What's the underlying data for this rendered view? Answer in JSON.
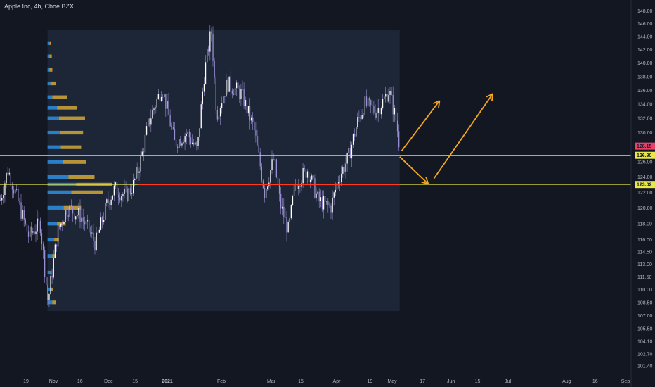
{
  "header": {
    "symbol_title": "Apple Inc, 4h, Cboe BZX"
  },
  "colors": {
    "background": "#131722",
    "profile_box": "#1c2636",
    "candle": "#9a8fd4",
    "volume_up": "#2e8fe0",
    "volume_down": "#d4a83a",
    "poc_line": "#ff3b1f",
    "level_line": "#e8e84a",
    "current_price_line": "#ef5350",
    "arrow": "#f5a623",
    "axis_text": "#b2b5be"
  },
  "chart_data": {
    "type": "candlestick",
    "title": "Apple Inc, 4h, Cboe BZX",
    "interval": "4h",
    "y_axis": {
      "scale": "log",
      "ylim": [
        100.5,
        149.5
      ],
      "tick_labels": [
        "148.00",
        "146.00",
        "144.00",
        "142.00",
        "140.00",
        "138.00",
        "136.00",
        "134.00",
        "132.00",
        "130.00",
        "128.00",
        "126.00",
        "124.00",
        "122.00",
        "120.00",
        "118.00",
        "116.00",
        "114.50",
        "113.00",
        "111.50",
        "110.00",
        "108.50",
        "107.00",
        "105.50",
        "104.10",
        "102.70",
        "101.40"
      ]
    },
    "x_axis": {
      "tick_labels": [
        "19",
        "Nov",
        "16",
        "Dec",
        "15",
        "2021",
        "Feb",
        "Mar",
        "15",
        "Apr",
        "19",
        "May",
        "17",
        "Jun",
        "15",
        "Jul",
        "Aug",
        "16",
        "Sep"
      ],
      "range": [
        "2020-10-12",
        "2021-09-01"
      ]
    },
    "price_path": [
      {
        "date": "2020-10-12",
        "price": 121.0
      },
      {
        "date": "2020-10-14",
        "price": 125.0
      },
      {
        "date": "2020-10-20",
        "price": 116.5
      },
      {
        "date": "2020-10-26",
        "price": 118.0
      },
      {
        "date": "2020-10-30",
        "price": 108.5
      },
      {
        "date": "2020-11-04",
        "price": 117.0
      },
      {
        "date": "2020-11-09",
        "price": 120.0
      },
      {
        "date": "2020-11-16",
        "price": 119.0
      },
      {
        "date": "2020-11-24",
        "price": 115.5
      },
      {
        "date": "2020-11-30",
        "price": 120.5
      },
      {
        "date": "2020-12-04",
        "price": 122.5
      },
      {
        "date": "2020-12-10",
        "price": 121.5
      },
      {
        "date": "2020-12-14",
        "price": 123.0
      },
      {
        "date": "2020-12-18",
        "price": 126.5
      },
      {
        "date": "2020-12-22",
        "price": 131.5
      },
      {
        "date": "2020-12-29",
        "price": 136.5
      },
      {
        "date": "2021-01-05",
        "price": 128.5
      },
      {
        "date": "2021-01-12",
        "price": 130.0
      },
      {
        "date": "2021-01-18",
        "price": 127.5
      },
      {
        "date": "2021-01-22",
        "price": 138.5
      },
      {
        "date": "2021-01-26",
        "price": 145.0
      },
      {
        "date": "2021-01-29",
        "price": 132.5
      },
      {
        "date": "2021-02-04",
        "price": 137.0
      },
      {
        "date": "2021-02-12",
        "price": 135.5
      },
      {
        "date": "2021-02-19",
        "price": 130.5
      },
      {
        "date": "2021-02-25",
        "price": 122.0
      },
      {
        "date": "2021-03-02",
        "price": 126.5
      },
      {
        "date": "2021-03-05",
        "price": 120.5
      },
      {
        "date": "2021-03-09",
        "price": 117.0
      },
      {
        "date": "2021-03-12",
        "price": 123.0
      },
      {
        "date": "2021-03-18",
        "price": 125.0
      },
      {
        "date": "2021-03-23",
        "price": 121.0
      },
      {
        "date": "2021-03-29",
        "price": 120.0
      },
      {
        "date": "2021-04-02",
        "price": 124.0
      },
      {
        "date": "2021-04-07",
        "price": 126.5
      },
      {
        "date": "2021-04-12",
        "price": 131.5
      },
      {
        "date": "2021-04-16",
        "price": 134.0
      },
      {
        "date": "2021-04-22",
        "price": 133.0
      },
      {
        "date": "2021-04-26",
        "price": 134.5
      },
      {
        "date": "2021-04-29",
        "price": 136.0
      },
      {
        "date": "2021-05-03",
        "price": 131.5
      },
      {
        "date": "2021-05-05",
        "price": 127.5
      }
    ],
    "volume_profile": {
      "date_range": [
        "2020-10-30",
        "2021-05-05"
      ],
      "price_range": [
        107.5,
        145.0
      ],
      "point_of_control": 123.0,
      "up_volume_relative": [
        {
          "price": 108.5,
          "value": 0.05
        },
        {
          "price": 110.0,
          "value": 0.04
        },
        {
          "price": 112.0,
          "value": 0.03
        },
        {
          "price": 114.0,
          "value": 0.05
        },
        {
          "price": 116.0,
          "value": 0.07
        },
        {
          "price": 118.0,
          "value": 0.1
        },
        {
          "price": 120.0,
          "value": 0.17
        },
        {
          "price": 122.0,
          "value": 0.25
        },
        {
          "price": 123.0,
          "value": 0.3
        },
        {
          "price": 124.0,
          "value": 0.22
        },
        {
          "price": 126.0,
          "value": 0.16
        },
        {
          "price": 128.0,
          "value": 0.14
        },
        {
          "price": 130.0,
          "value": 0.13
        },
        {
          "price": 132.0,
          "value": 0.12
        },
        {
          "price": 133.5,
          "value": 0.1
        },
        {
          "price": 135.0,
          "value": 0.05
        },
        {
          "price": 137.0,
          "value": 0.03
        },
        {
          "price": 139.0,
          "value": 0.02
        },
        {
          "price": 141.0,
          "value": 0.02
        },
        {
          "price": 143.0,
          "value": 0.02
        }
      ],
      "down_volume_relative": [
        {
          "price": 108.5,
          "value": 0.06
        },
        {
          "price": 110.0,
          "value": 0.03
        },
        {
          "price": 112.0,
          "value": 0.02
        },
        {
          "price": 114.0,
          "value": 0.04
        },
        {
          "price": 116.0,
          "value": 0.08
        },
        {
          "price": 118.0,
          "value": 0.14
        },
        {
          "price": 120.0,
          "value": 0.3
        },
        {
          "price": 122.0,
          "value": 0.55
        },
        {
          "price": 123.0,
          "value": 0.62
        },
        {
          "price": 124.0,
          "value": 0.45
        },
        {
          "price": 126.0,
          "value": 0.4
        },
        {
          "price": 128.0,
          "value": 0.35
        },
        {
          "price": 130.0,
          "value": 0.4
        },
        {
          "price": 132.0,
          "value": 0.45
        },
        {
          "price": 133.5,
          "value": 0.35
        },
        {
          "price": 135.0,
          "value": 0.25
        },
        {
          "price": 137.0,
          "value": 0.1
        },
        {
          "price": 139.0,
          "value": 0.05
        },
        {
          "price": 141.0,
          "value": 0.04
        },
        {
          "price": 143.0,
          "value": 0.03
        }
      ]
    },
    "horizontal_levels": [
      {
        "price": 126.9,
        "label": "126.90",
        "color": "#e8e84a"
      },
      {
        "price": 123.02,
        "label": "123.02",
        "color": "#e8e84a"
      }
    ],
    "current_price": {
      "price": 128.15,
      "label": "128.15",
      "color": "#ef5350"
    },
    "arrows": [
      {
        "from": {
          "date": "2021-05-06",
          "price": 127.5
        },
        "to": {
          "date": "2021-05-26",
          "price": 134.5
        }
      },
      {
        "from": {
          "date": "2021-05-05",
          "price": 126.7
        },
        "to": {
          "date": "2021-05-20",
          "price": 123.1
        }
      },
      {
        "from": {
          "date": "2021-05-23",
          "price": 123.8
        },
        "to": {
          "date": "2021-06-23",
          "price": 135.5
        }
      }
    ]
  }
}
